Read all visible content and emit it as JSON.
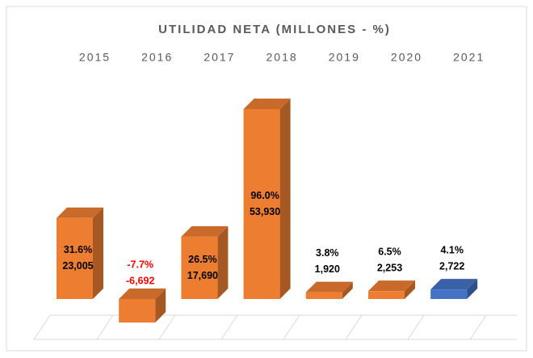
{
  "chart_data": {
    "type": "bar3d",
    "title": "UTILIDAD NETA (MILLONES - %)",
    "categories": [
      "2015",
      "2016",
      "2017",
      "2018",
      "2019",
      "2020",
      "2021"
    ],
    "values": [
      23005,
      -6692,
      17690,
      53930,
      1920,
      2253,
      2722
    ],
    "value_labels": [
      "23,005",
      "-6,692",
      "17,690",
      "53,930",
      "1,920",
      "2,253",
      "2,722"
    ],
    "growth_labels": [
      "31.6%",
      "-7.7%",
      "26.5%",
      "96.0%",
      "3.8%",
      "6.5%",
      "4.1%"
    ],
    "colors": [
      "#ed7d31",
      "#ed7d31",
      "#ed7d31",
      "#ed7d31",
      "#ed7d31",
      "#ed7d31",
      "#4472c4"
    ],
    "negative_label_color": "#ff0000"
  }
}
